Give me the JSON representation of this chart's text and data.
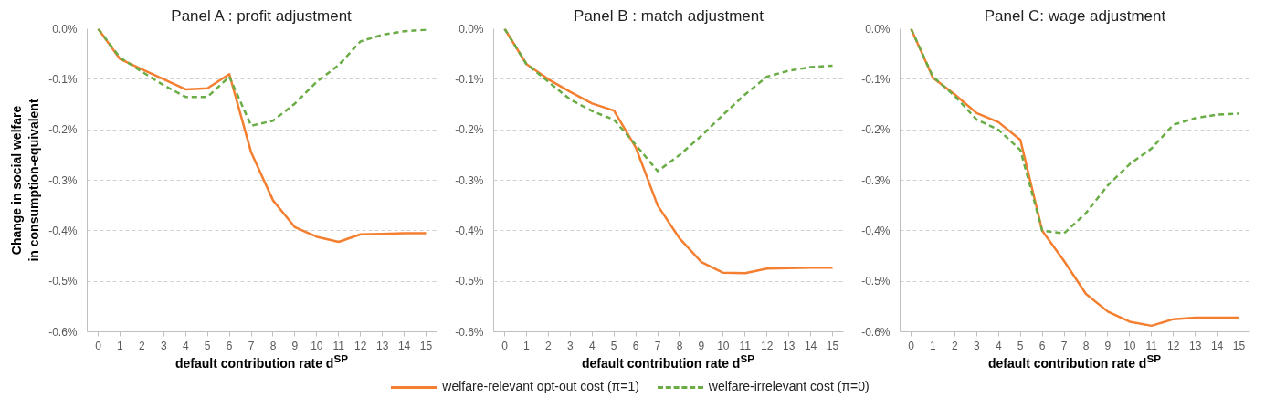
{
  "chart_data": [
    {
      "type": "line",
      "title": "Panel A : profit adjustment",
      "xlabel": "default contribution rate d$^{SP}$",
      "legend": "bottom",
      "ylabel": "Change in social welfare\nin consumption-equivalent",
      "x": [
        0,
        1,
        2,
        3,
        4,
        5,
        6,
        7,
        8,
        9,
        10,
        11,
        12,
        13,
        14,
        15
      ],
      "xlim": [
        -0.5,
        15.5
      ],
      "xticks": [
        0,
        1,
        2,
        3,
        4,
        5,
        6,
        7,
        8,
        9,
        10,
        11,
        12,
        13,
        14,
        15
      ],
      "ylim": [
        -0.6,
        0.0
      ],
      "yticks": [
        {
          "value": 0.0,
          "label": "0.0%"
        },
        {
          "value": -0.1,
          "label": "-0.1%"
        },
        {
          "value": -0.2,
          "label": "-0.2%"
        },
        {
          "value": -0.3,
          "label": "-0.3%"
        },
        {
          "value": -0.4,
          "label": "-0.4%"
        },
        {
          "value": -0.5,
          "label": "-0.5%"
        },
        {
          "value": -0.6,
          "label": "-0.6%"
        }
      ],
      "grid": "y",
      "series": [
        {
          "name": "welfare-relevant opt-out cost (π=1)",
          "color": "#f47f30",
          "line_style": "solid",
          "values": [
            0,
            -0.06,
            -0.08,
            -0.1,
            -0.12,
            -0.118,
            -0.09,
            -0.245,
            -0.34,
            -0.393,
            -0.412,
            -0.422,
            -0.407,
            -0.406,
            -0.405,
            -0.405
          ]
        },
        {
          "name": "welfare-irrelevant cost (π=0)",
          "color": "#6aac45",
          "line_style": "dashed",
          "values": [
            0,
            -0.057,
            -0.085,
            -0.112,
            -0.135,
            -0.135,
            -0.095,
            -0.192,
            -0.182,
            -0.148,
            -0.105,
            -0.072,
            -0.025,
            -0.012,
            -0.005,
            -0.002
          ]
        }
      ]
    },
    {
      "type": "line",
      "title": "Panel B : match adjustment",
      "xlabel": "default contribution rate d$^{SP}$",
      "x": [
        0,
        1,
        2,
        3,
        4,
        5,
        6,
        7,
        8,
        9,
        10,
        11,
        12,
        13,
        14,
        15
      ],
      "xlim": [
        -0.5,
        15.5
      ],
      "xticks": [
        0,
        1,
        2,
        3,
        4,
        5,
        6,
        7,
        8,
        9,
        10,
        11,
        12,
        13,
        14,
        15
      ],
      "ylim": [
        -0.6,
        0.0
      ],
      "yticks": [
        {
          "value": 0.0,
          "label": "0.0%"
        },
        {
          "value": -0.1,
          "label": "-0.1%"
        },
        {
          "value": -0.2,
          "label": "-0.2%"
        },
        {
          "value": -0.3,
          "label": "-0.3%"
        },
        {
          "value": -0.4,
          "label": "-0.4%"
        },
        {
          "value": -0.5,
          "label": "-0.5%"
        },
        {
          "value": -0.6,
          "label": "-0.6%"
        }
      ],
      "grid": "y",
      "series": [
        {
          "color": "#f47f30",
          "line_style": "solid",
          "values": [
            0,
            -0.07,
            -0.1,
            -0.125,
            -0.148,
            -0.162,
            -0.235,
            -0.35,
            -0.415,
            -0.462,
            -0.483,
            -0.484,
            -0.475,
            -0.474,
            -0.473,
            -0.473
          ]
        },
        {
          "color": "#6aac45",
          "line_style": "dashed",
          "values": [
            0,
            -0.07,
            -0.105,
            -0.14,
            -0.163,
            -0.18,
            -0.23,
            -0.282,
            -0.25,
            -0.212,
            -0.17,
            -0.13,
            -0.095,
            -0.083,
            -0.076,
            -0.073
          ]
        }
      ]
    },
    {
      "type": "line",
      "title": "Panel C: wage adjustment",
      "xlabel": "default contribution rate d$^{SP}$",
      "x": [
        0,
        1,
        2,
        3,
        4,
        5,
        6,
        7,
        8,
        9,
        10,
        11,
        12,
        13,
        14,
        15
      ],
      "xlim": [
        -0.5,
        15.5
      ],
      "xticks": [
        0,
        1,
        2,
        3,
        4,
        5,
        6,
        7,
        8,
        9,
        10,
        11,
        12,
        13,
        14,
        15
      ],
      "ylim": [
        -0.6,
        0.0
      ],
      "yticks": [
        {
          "value": 0.0,
          "label": "0.0%"
        },
        {
          "value": -0.1,
          "label": "-0.1%"
        },
        {
          "value": -0.2,
          "label": "-0.2%"
        },
        {
          "value": -0.3,
          "label": "-0.3%"
        },
        {
          "value": -0.4,
          "label": "-0.4%"
        },
        {
          "value": -0.5,
          "label": "-0.5%"
        },
        {
          "value": -0.6,
          "label": "-0.6%"
        }
      ],
      "grid": "y",
      "series": [
        {
          "color": "#f47f30",
          "line_style": "solid",
          "values": [
            0,
            -0.097,
            -0.13,
            -0.167,
            -0.185,
            -0.22,
            -0.4,
            -0.46,
            -0.525,
            -0.56,
            -0.58,
            -0.588,
            -0.575,
            -0.572,
            -0.572,
            -0.572
          ]
        },
        {
          "color": "#6aac45",
          "line_style": "dashed",
          "values": [
            0,
            -0.095,
            -0.133,
            -0.18,
            -0.2,
            -0.24,
            -0.4,
            -0.405,
            -0.365,
            -0.31,
            -0.268,
            -0.237,
            -0.19,
            -0.177,
            -0.17,
            -0.168
          ]
        }
      ]
    }
  ]
}
